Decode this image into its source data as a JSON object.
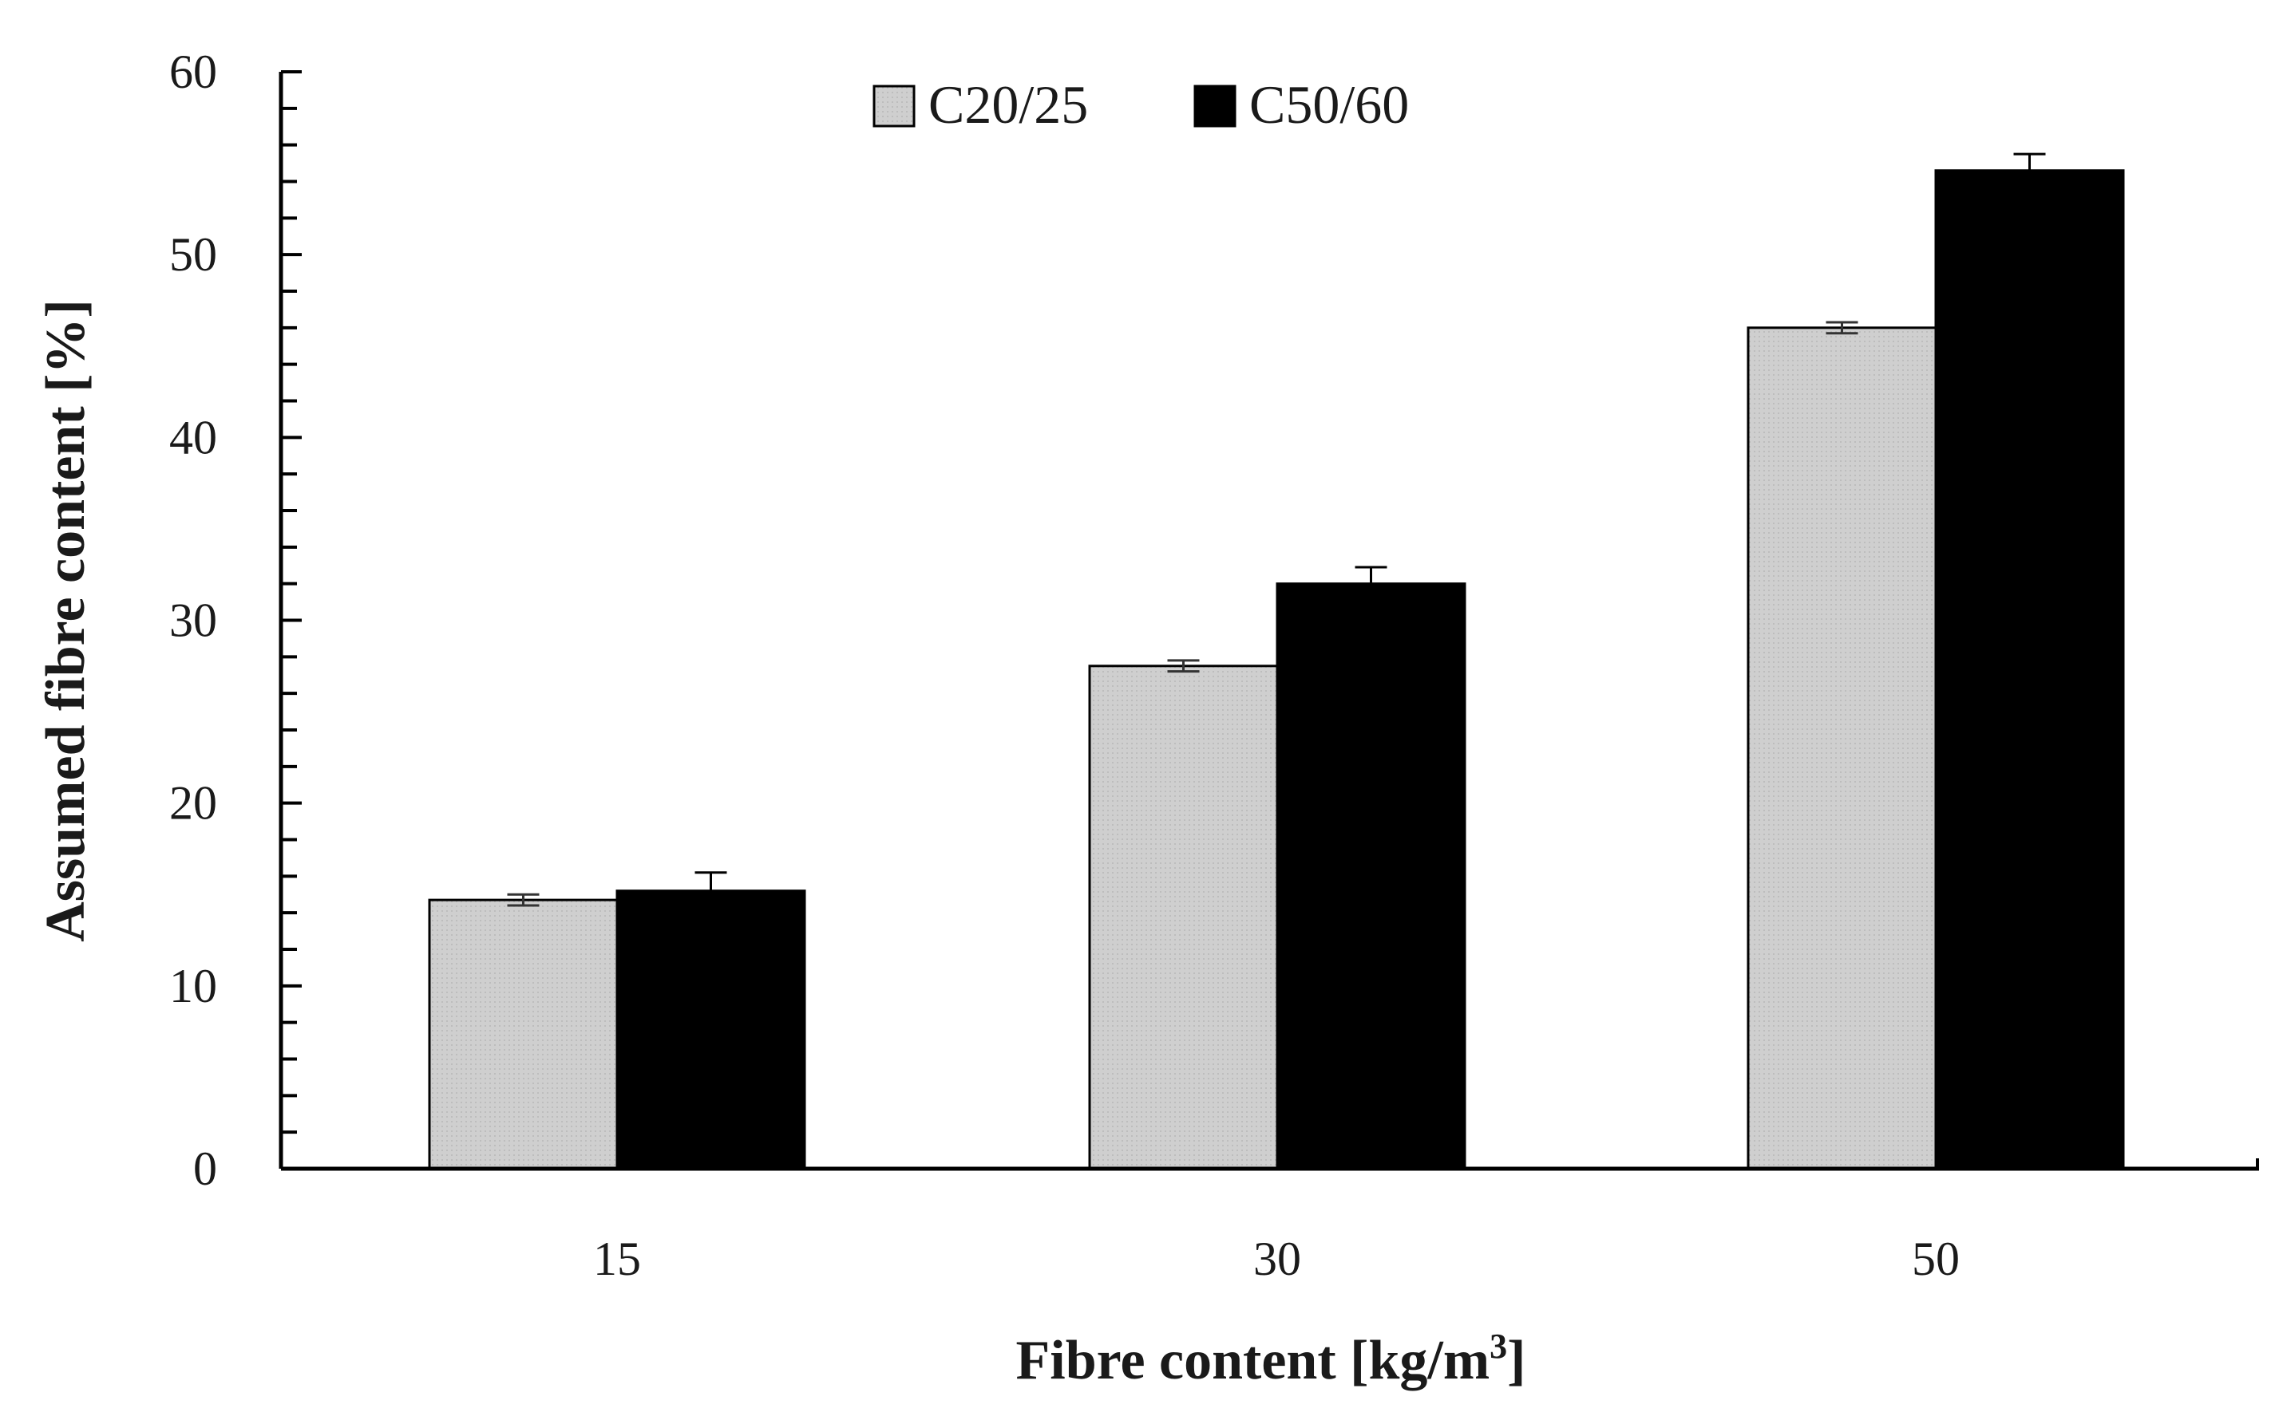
{
  "chart_data": {
    "type": "bar",
    "categories": [
      "15",
      "30",
      "50"
    ],
    "series": [
      {
        "name": "C20/25",
        "color": "#c8c8c8",
        "values": [
          14.7,
          27.5,
          46.0
        ],
        "errors": [
          0.3,
          0.3,
          0.3
        ]
      },
      {
        "name": "C50/60",
        "color": "#000000",
        "values": [
          15.2,
          32.0,
          54.6
        ],
        "errors": [
          1.0,
          0.9,
          0.9
        ]
      }
    ],
    "xlabel": "Fibre content [kg/m",
    "xlabel_sup": "3",
    "xlabel_end": "]",
    "ylabel": "Assumed fibre content [%]",
    "ylim": [
      0,
      60
    ],
    "yticks": [
      "0",
      "10",
      "20",
      "30",
      "40",
      "50",
      "60"
    ],
    "grid": false,
    "legend_position": "top-center"
  }
}
